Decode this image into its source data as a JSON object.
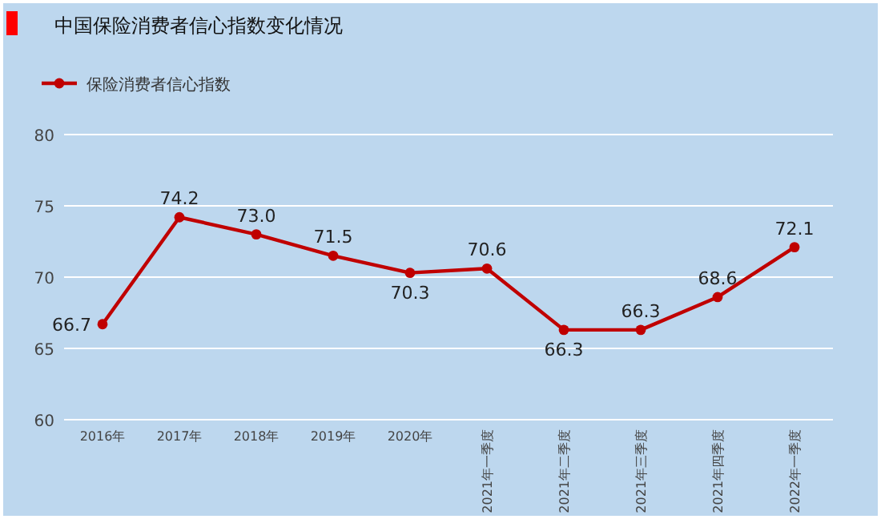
{
  "chart_data": {
    "type": "line",
    "title": "中国保险消费者信心指数变化情况",
    "categories": [
      "2016年",
      "2017年",
      "2018年",
      "2019年",
      "2020年",
      "2021年一季度",
      "2021年二季度",
      "2021年三季度",
      "2021年四季度",
      "2022年一季度"
    ],
    "series": [
      {
        "name": "保险消费者信心指数",
        "color": "#c00000",
        "values": [
          66.7,
          74.2,
          73.0,
          71.5,
          70.3,
          70.6,
          66.3,
          66.3,
          68.6,
          72.1
        ],
        "value_labels": [
          "66.7",
          "74.2",
          "73.0",
          "71.5",
          "70.3",
          "70.6",
          "66.3",
          "66.3",
          "68.6",
          "72.1"
        ]
      }
    ],
    "ylim": [
      60,
      80
    ],
    "yticks": [
      60,
      65,
      70,
      75,
      80
    ],
    "grid": "y",
    "legend": "top left",
    "marker": "circle",
    "line_style": "solid"
  }
}
